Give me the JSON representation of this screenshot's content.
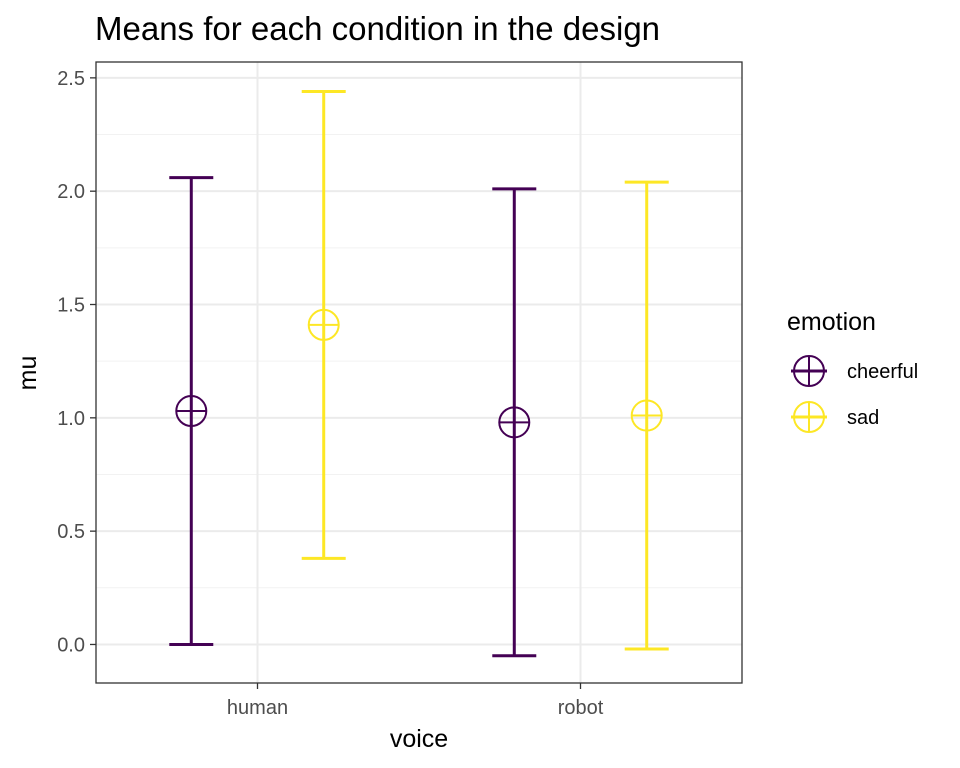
{
  "chart_data": {
    "type": "errorbar",
    "title": "Means for each condition in the design",
    "xlabel": "voice",
    "ylabel": "mu",
    "categories": [
      "human",
      "robot"
    ],
    "ylim": [
      -0.17,
      2.57
    ],
    "yticks": [
      "0.0",
      "0.5",
      "1.0",
      "1.5",
      "2.0",
      "2.5"
    ],
    "grid": true,
    "legend": {
      "title": "emotion",
      "placement": "right",
      "entries": [
        "cheerful",
        "sad"
      ]
    },
    "series": [
      {
        "name": "cheerful",
        "color": "#440154",
        "points": [
          {
            "x": "human",
            "y": 1.03,
            "ymin": 0.0,
            "ymax": 2.06
          },
          {
            "x": "robot",
            "y": 0.98,
            "ymin": -0.05,
            "ymax": 2.01
          }
        ]
      },
      {
        "name": "sad",
        "color": "#FDE725",
        "points": [
          {
            "x": "human",
            "y": 1.41,
            "ymin": 0.38,
            "ymax": 2.44
          },
          {
            "x": "robot",
            "y": 1.01,
            "ymin": -0.02,
            "ymax": 2.04
          }
        ]
      }
    ]
  }
}
